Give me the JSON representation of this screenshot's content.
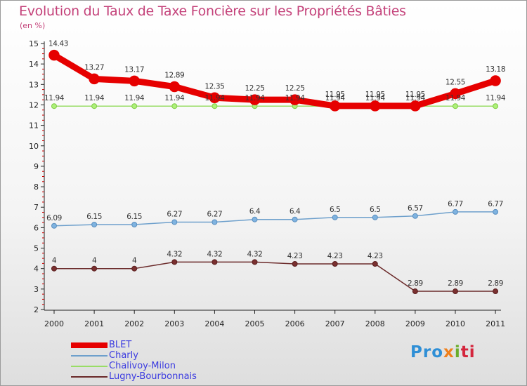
{
  "chart_data": {
    "type": "line",
    "title": "Evolution du Taux de Taxe Foncière sur les Propriétés Bâties",
    "subtitle": "(en %)",
    "xlabel": "",
    "ylabel": "(en %)",
    "ylim": [
      2,
      15
    ],
    "yticks": [
      2,
      3,
      4,
      5,
      6,
      7,
      8,
      9,
      10,
      11,
      12,
      13,
      14,
      15
    ],
    "x": [
      "2000",
      "2001",
      "2002",
      "2003",
      "2004",
      "2005",
      "2006",
      "2007",
      "2008",
      "2009",
      "2010",
      "2011"
    ],
    "grid": false,
    "legend_position": "bottom-left",
    "series": [
      {
        "name": "BLET",
        "color": "#e60000",
        "values": [
          14.43,
          13.27,
          13.17,
          12.89,
          12.35,
          12.25,
          12.25,
          11.95,
          11.95,
          11.95,
          12.55,
          13.18
        ],
        "labels": [
          "14.43",
          "13.27",
          "13.17",
          "12.89",
          "12.35",
          "12.25",
          "12.25",
          "11.95",
          "11.95",
          "11.95",
          "12.55",
          "13.18"
        ]
      },
      {
        "name": "Charly",
        "color": "#6ea0cc",
        "values": [
          6.09,
          6.15,
          6.15,
          6.27,
          6.27,
          6.4,
          6.4,
          6.5,
          6.5,
          6.57,
          6.77,
          6.77
        ],
        "labels": [
          "6.09",
          "6.15",
          "6.15",
          "6.27",
          "6.27",
          "6.4",
          "6.4",
          "6.5",
          "6.5",
          "6.57",
          "6.77",
          "6.77"
        ]
      },
      {
        "name": "Chalivoy-Milon",
        "color": "#99dd66",
        "values": [
          11.94,
          11.94,
          11.94,
          11.94,
          11.94,
          11.94,
          11.94,
          11.94,
          11.94,
          11.94,
          11.94,
          11.94
        ],
        "labels": [
          "11.94",
          "11.94",
          "11.94",
          "11.94",
          "11.94",
          "11.94",
          "11.94",
          "11.94",
          "11.94",
          "11.94",
          "11.94",
          "11.94"
        ]
      },
      {
        "name": "Lugny-Bourbonnais",
        "color": "#6b2a2a",
        "values": [
          4,
          4,
          4,
          4.32,
          4.32,
          4.32,
          4.23,
          4.23,
          4.23,
          2.89,
          2.89,
          2.89
        ],
        "labels": [
          "4",
          "4",
          "4",
          "4.32",
          "4.32",
          "4.32",
          "4.23",
          "4.23",
          "4.23",
          "2.89",
          "2.89",
          "2.89"
        ]
      }
    ]
  },
  "legend": {
    "items": [
      "BLET",
      "Charly",
      "Chalivoy-Milon",
      "Lugny-Bourbonnais"
    ],
    "text_color": "#3b3be0"
  },
  "logo": {
    "p1": "Pro",
    "p2": "x",
    "p3": "i",
    "p4": "ti"
  }
}
